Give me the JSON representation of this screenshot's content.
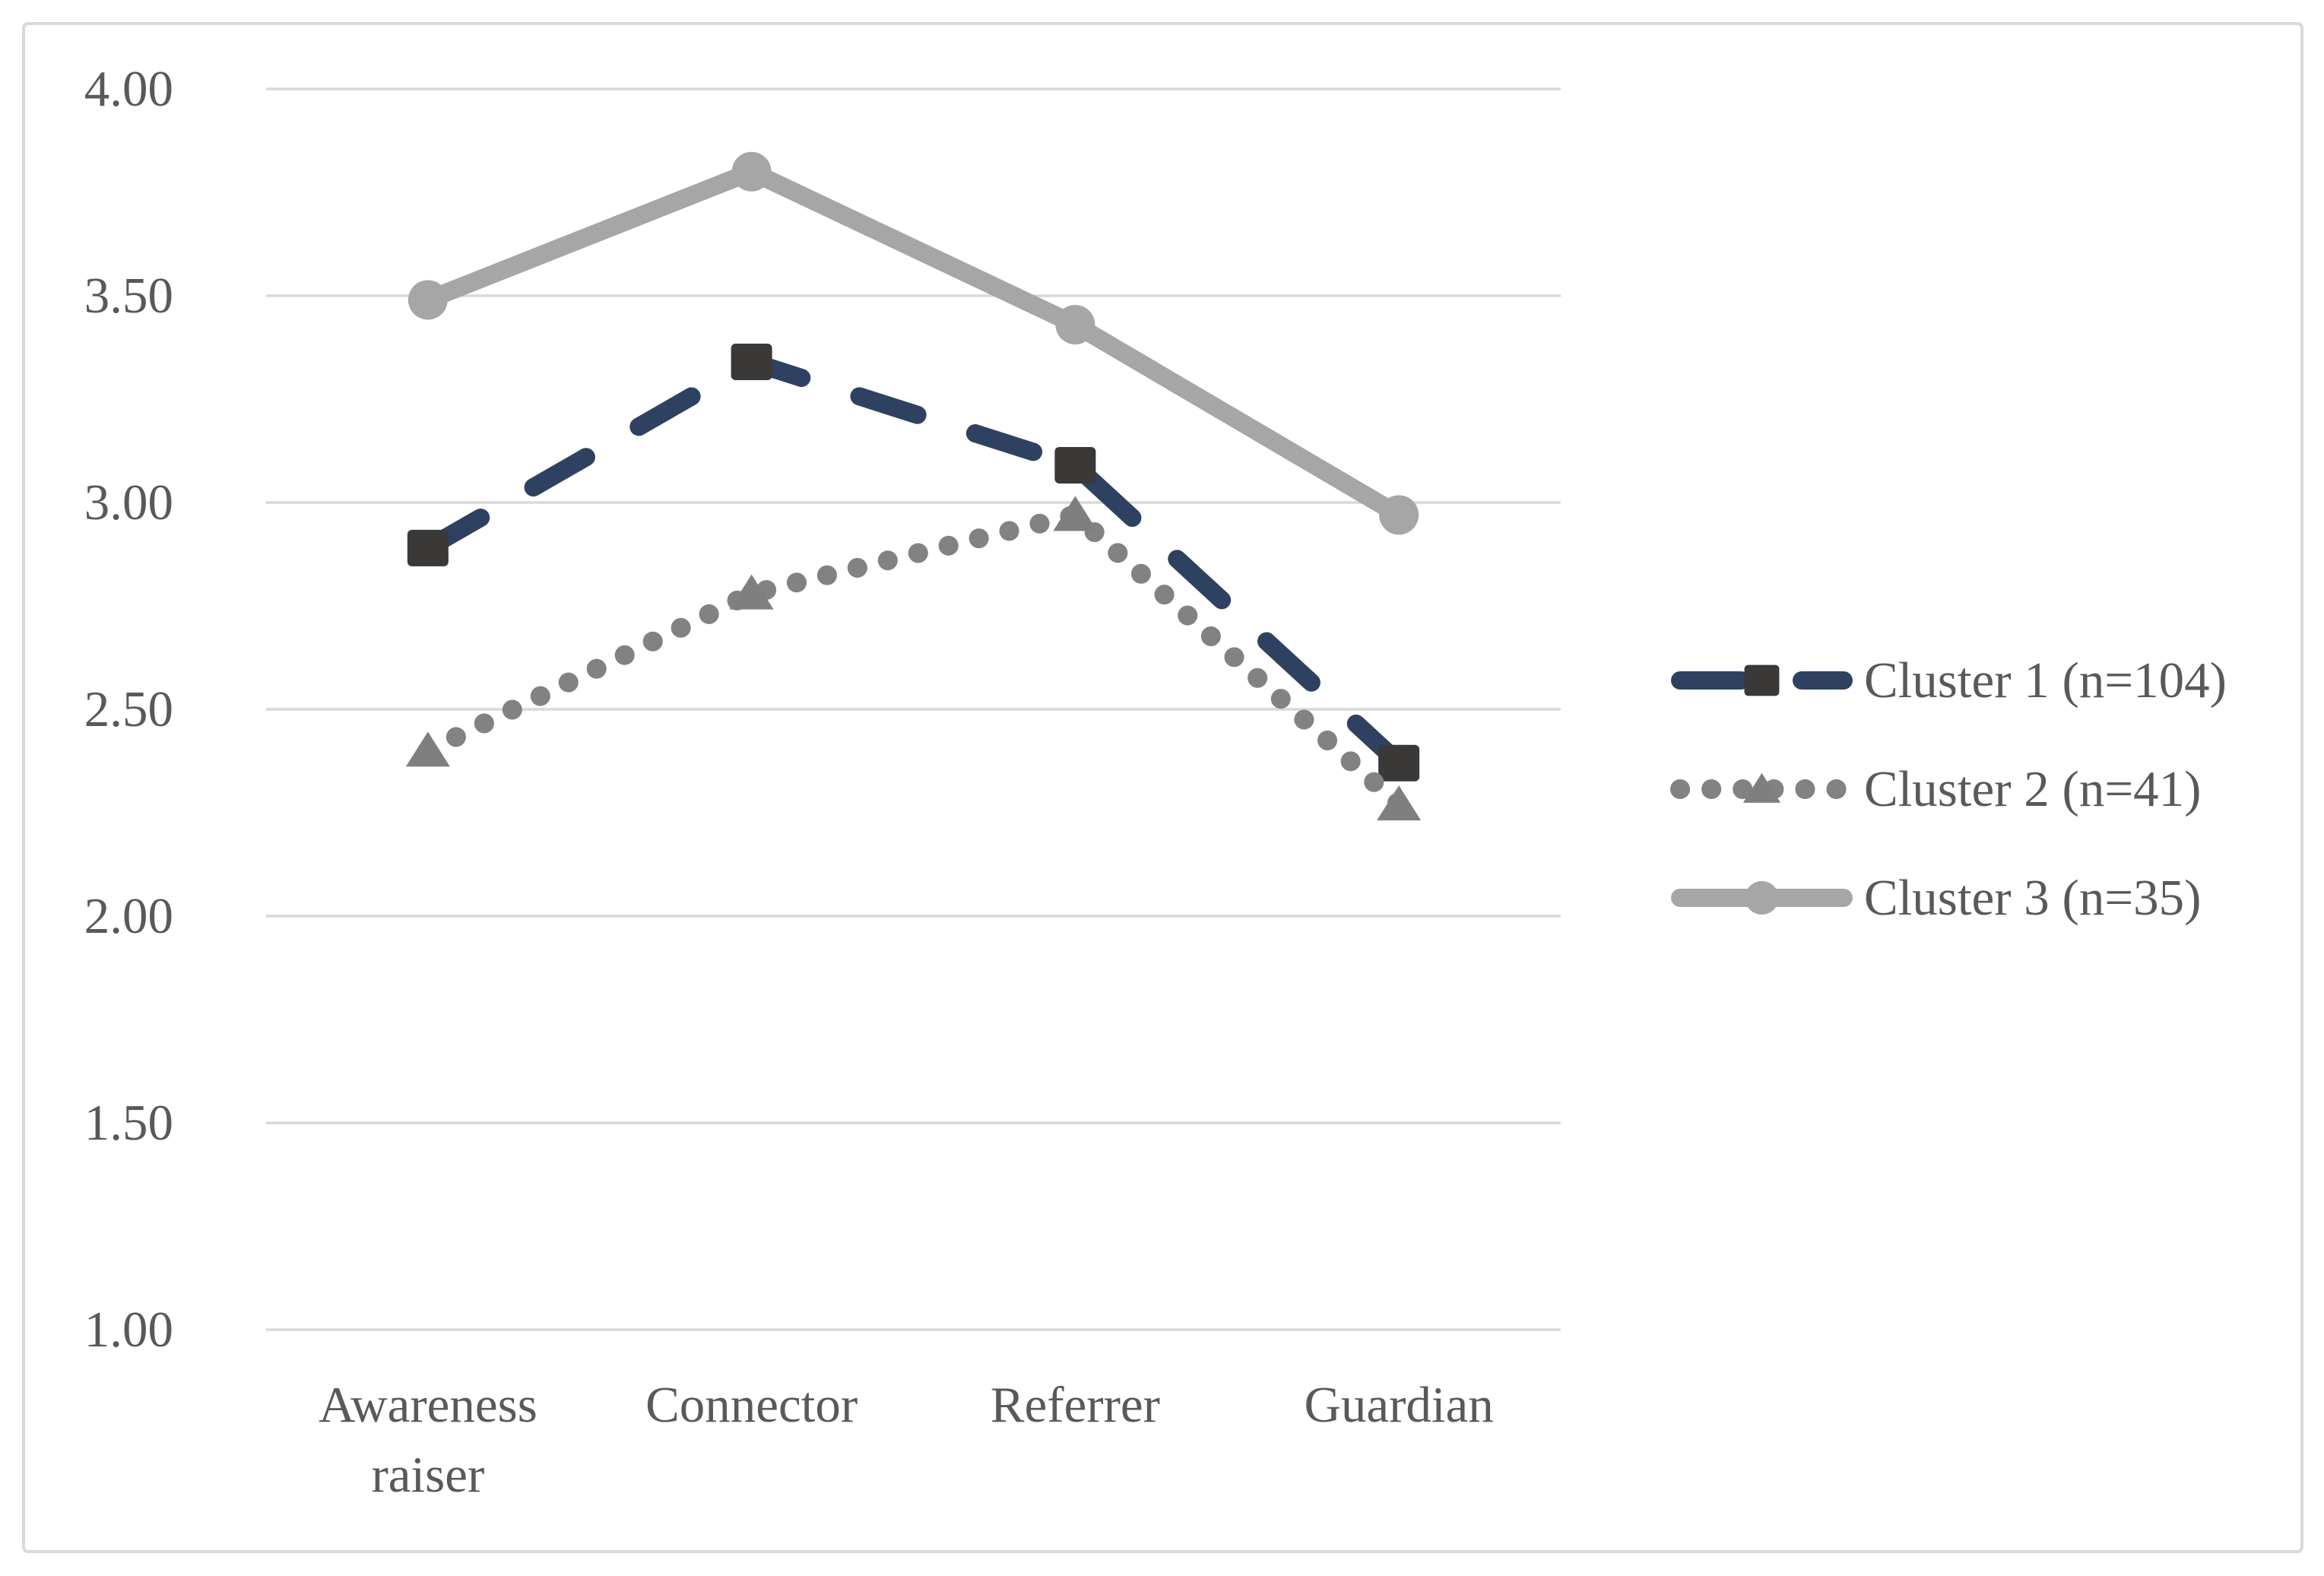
{
  "chart_data": {
    "type": "line",
    "title": "",
    "categories": [
      "Awareness raiser",
      "Connector",
      "Referrer",
      "Guardian"
    ],
    "series": [
      {
        "name": "Cluster 1 (n=104)",
        "values": [
          2.89,
          3.34,
          3.09,
          2.37
        ],
        "line_style": "dashed",
        "line_color": "#2E4160",
        "marker": "square",
        "marker_color": "#3B3838"
      },
      {
        "name": "Cluster 2 (n=41)",
        "values": [
          2.4,
          2.78,
          2.97,
          2.27
        ],
        "line_style": "dotted",
        "line_color": "#828282",
        "marker": "triangle",
        "marker_color": "#7F7F7F"
      },
      {
        "name": "Cluster 3 (n=35)",
        "values": [
          3.49,
          3.8,
          3.43,
          2.97
        ],
        "line_style": "solid",
        "line_color": "#A6A6A6",
        "marker": "circle",
        "marker_color": "#A6A6A6"
      }
    ],
    "xlabel": "",
    "ylabel": "",
    "ylim": [
      1.0,
      4.0
    ],
    "y_tick_step": 0.5,
    "y_ticks": [
      "4.00",
      "3.50",
      "3.00",
      "2.50",
      "2.00",
      "1.50",
      "1.00"
    ],
    "grid": true,
    "legend_position": "right",
    "colors": {
      "grid": "#D9D9D9",
      "frame_border": "#D9D9D9",
      "text": "#595959",
      "background": "#FFFFFF"
    }
  }
}
